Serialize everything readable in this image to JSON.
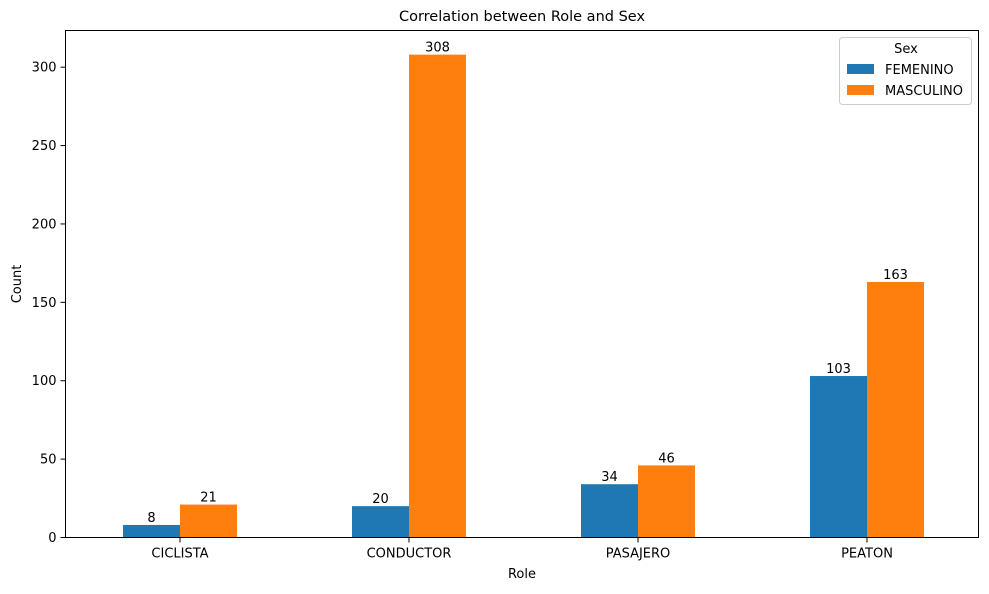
{
  "chart_data": {
    "type": "bar",
    "title": "Correlation between Role and Sex",
    "xlabel": "Role",
    "ylabel": "Count",
    "categories": [
      "CICLISTA",
      "CONDUCTOR",
      "PASAJERO",
      "PEATON"
    ],
    "series": [
      {
        "name": "FEMENINO",
        "color": "#1f77b4",
        "values": [
          8,
          20,
          34,
          103
        ]
      },
      {
        "name": "MASCULINO",
        "color": "#ff7f0e",
        "values": [
          21,
          308,
          46,
          163
        ]
      }
    ],
    "ylim": [
      0,
      323.4
    ],
    "yticks": [
      0,
      50,
      100,
      150,
      200,
      250,
      300
    ],
    "grid": false,
    "legend": {
      "title": "Sex",
      "position": "top-right"
    }
  }
}
